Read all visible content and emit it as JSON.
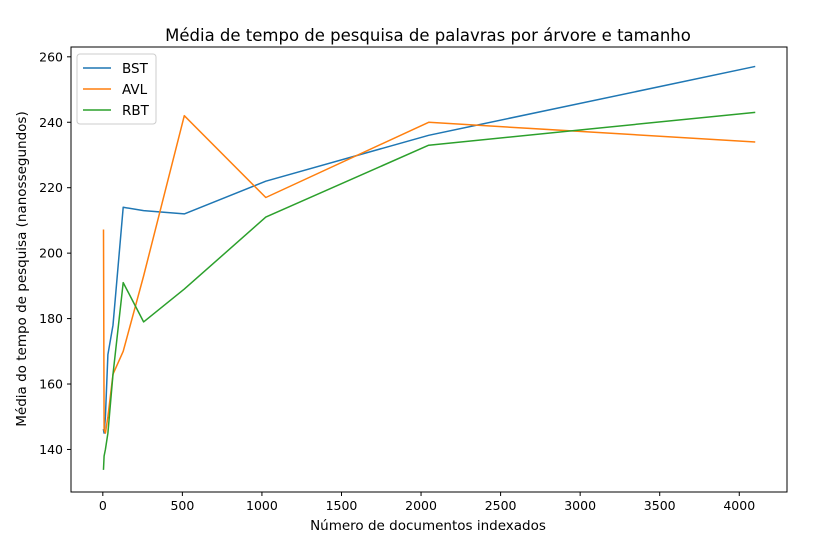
{
  "chart_data": {
    "type": "line",
    "title": "Média de tempo de pesquisa de palavras por árvore e tamanho",
    "xlabel": "Número de documentos indexados",
    "ylabel": "Média do tempo de pesquisa (nanossegundos)",
    "xlim": [
      -200,
      4300
    ],
    "ylim": [
      127,
      263
    ],
    "xticks": [
      0,
      500,
      1000,
      1500,
      2000,
      2500,
      3000,
      3500,
      4000
    ],
    "yticks": [
      140,
      160,
      180,
      200,
      220,
      240,
      260
    ],
    "grid": false,
    "legend_position": "upper-left",
    "series": [
      {
        "name": "BST",
        "color": "#1f77b4",
        "x": [
          4,
          8,
          16,
          32,
          64,
          128,
          256,
          512,
          1024,
          2048,
          4096
        ],
        "y": [
          146,
          145,
          150,
          169,
          178,
          214,
          213,
          212,
          222,
          236,
          257
        ]
      },
      {
        "name": "AVL",
        "color": "#ff7f0e",
        "x": [
          4,
          8,
          16,
          32,
          64,
          128,
          256,
          512,
          1024,
          2048,
          4096
        ],
        "y": [
          207,
          146,
          145,
          150,
          163,
          170,
          193,
          242,
          217,
          240,
          234
        ]
      },
      {
        "name": "RBT",
        "color": "#2ca02c",
        "x": [
          4,
          8,
          16,
          32,
          64,
          128,
          256,
          512,
          1024,
          2048,
          4096
        ],
        "y": [
          134,
          138,
          140,
          145,
          163,
          191,
          179,
          189,
          211,
          233,
          243
        ]
      }
    ]
  }
}
